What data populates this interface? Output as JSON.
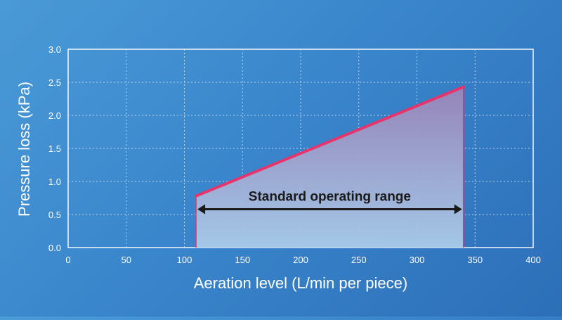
{
  "chart_data": {
    "type": "area",
    "xlabel": "Aeration level (L/min per piece)",
    "ylabel": "Pressure loss (kPa)",
    "xlim": [
      0,
      400
    ],
    "ylim": [
      0,
      3.0
    ],
    "x_ticks": [
      0,
      50,
      100,
      150,
      200,
      250,
      300,
      350,
      400
    ],
    "y_ticks": [
      "0.0",
      "0.5",
      "1.0",
      "1.5",
      "2.0",
      "2.5",
      "3.0"
    ],
    "grid": true,
    "series": [
      {
        "x": [
          110,
          340
        ],
        "y": [
          0.78,
          2.43
        ]
      }
    ],
    "annotation": {
      "text": "Standard operating range",
      "x_start": 110,
      "x_end": 340,
      "y": 0.58
    },
    "colors": {
      "line": "#e8336b",
      "fill_top": "#9a85b8",
      "fill_bottom": "#a9cbe9",
      "grid": "#cfe2f3",
      "text": "#ffffff",
      "annotation": "#1a1a1a"
    }
  }
}
